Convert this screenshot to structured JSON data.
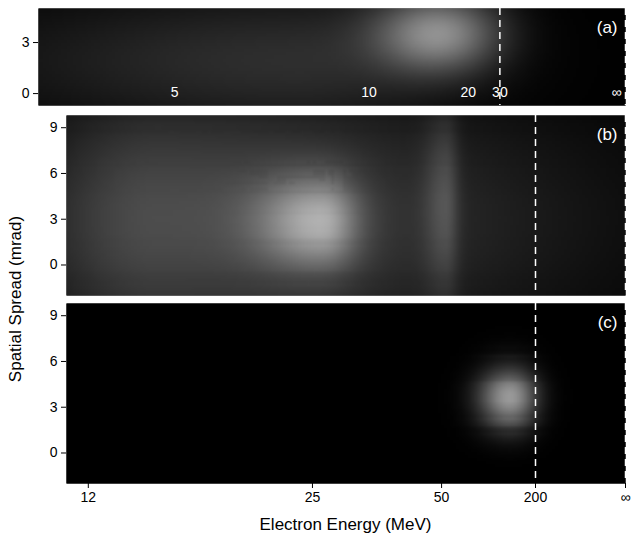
{
  "chart_data": [
    {
      "type": "heatmap",
      "panel_label": "(a)",
      "xlim": [
        3,
        1e+308
      ],
      "xticks": [
        5,
        10,
        20,
        30,
        {
          "value": 1e+308,
          "label": "∞"
        }
      ],
      "ylim": [
        -0.7,
        5
      ],
      "yticks": [
        0,
        3
      ],
      "dashed_lines": [
        40,
        1e+308
      ],
      "spots": [
        {
          "energy": 8,
          "energy_range": [
            3.5,
            14
          ],
          "spread": 2,
          "spread_range": [
            -0.7,
            5
          ],
          "intensity": 0.18
        },
        {
          "energy": 17,
          "energy_range": [
            12.5,
            24
          ],
          "spread": 3.6,
          "spread_range": [
            2,
            5.2
          ],
          "intensity": 0.5
        }
      ]
    },
    {
      "type": "heatmap",
      "panel_label": "(b)",
      "tick_labels": "y",
      "y_label": "Spatial Spread (mrad)",
      "xlim": [
        11.5,
        1e+308
      ],
      "xticks": [
        12,
        25,
        50,
        200,
        {
          "value": 1e+308,
          "label": "∞"
        }
      ],
      "ylim": [
        -2,
        9.8
      ],
      "yticks": [
        0,
        3,
        6,
        9
      ],
      "dashed_lines": [
        200,
        1e+308
      ],
      "spots": [
        {
          "energy": 16,
          "energy_range": [
            11.5,
            45
          ],
          "spread": 3,
          "spread_range": [
            -2,
            9.8
          ],
          "intensity": 0.3
        },
        {
          "energy": 27,
          "energy_range": [
            23,
            32
          ],
          "spread": 2.8,
          "spread_range": [
            0.8,
            5
          ],
          "intensity": 0.45
        },
        {
          "energy": 58,
          "energy_range": [
            48,
            72
          ],
          "spread": 4,
          "spread_range": [
            0,
            8.5
          ],
          "intensity": 0.18
        }
      ]
    },
    {
      "type": "heatmap",
      "panel_label": "(c)",
      "x_label": "Electron Energy (MeV)",
      "xlim": [
        11.5,
        1e+308
      ],
      "xticks": [
        12,
        25,
        50,
        200,
        {
          "value": 1e+308,
          "label": "∞"
        }
      ],
      "ylim": [
        -2,
        9.8
      ],
      "yticks": [
        0,
        3,
        6,
        9
      ],
      "dashed_lines": [
        200,
        1e+308
      ],
      "spots": [
        {
          "energy": 160,
          "energy_range": [
            125,
            190
          ],
          "spread": 3.6,
          "spread_range": [
            2.2,
            5
          ],
          "intensity": 0.6
        }
      ]
    }
  ]
}
